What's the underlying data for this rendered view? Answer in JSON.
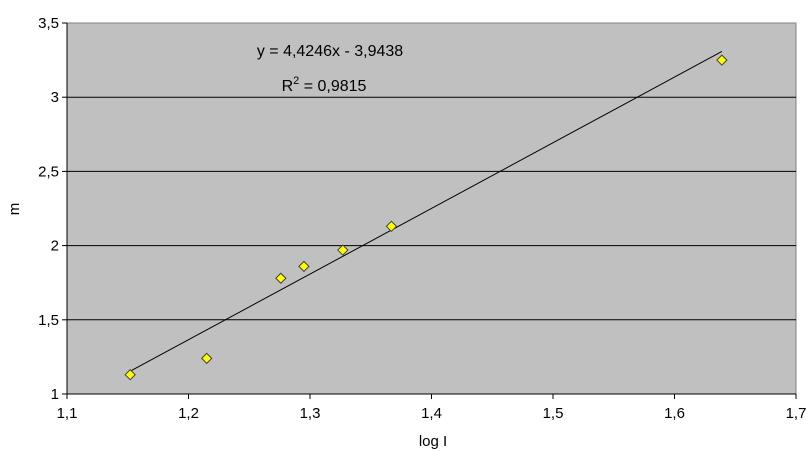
{
  "chart_data": {
    "type": "scatter",
    "title": "",
    "xlabel": "log I",
    "ylabel": "m",
    "xlim": [
      1.1,
      1.7
    ],
    "ylim": [
      1,
      3.5
    ],
    "x_ticks": [
      "1,1",
      "1,2",
      "1,3",
      "1,4",
      "1,5",
      "1,6",
      "1,7"
    ],
    "x_tick_values": [
      1.1,
      1.2,
      1.3,
      1.4,
      1.5,
      1.6,
      1.7
    ],
    "y_ticks": [
      "1",
      "1,5",
      "2",
      "2,5",
      "3",
      "3,5"
    ],
    "y_tick_values": [
      1,
      1.5,
      2,
      2.5,
      3,
      3.5
    ],
    "grid": "horizontal",
    "plot_background": "#C0C0C0",
    "marker_color": "#FFFF00",
    "series": [
      {
        "x": [
          1.152,
          1.215,
          1.276,
          1.295,
          1.327,
          1.367,
          1.639
        ],
        "y": [
          1.13,
          1.24,
          1.78,
          1.86,
          1.97,
          2.13,
          3.25
        ]
      }
    ],
    "trendline": {
      "slope": 4.4246,
      "intercept": -3.9438,
      "x_range": [
        1.152,
        1.639
      ],
      "equation": "y = 4,4246x - 3,9438",
      "r2_prefix": "R",
      "r2_sup": "2",
      "r2_value": " = 0,9815"
    }
  }
}
